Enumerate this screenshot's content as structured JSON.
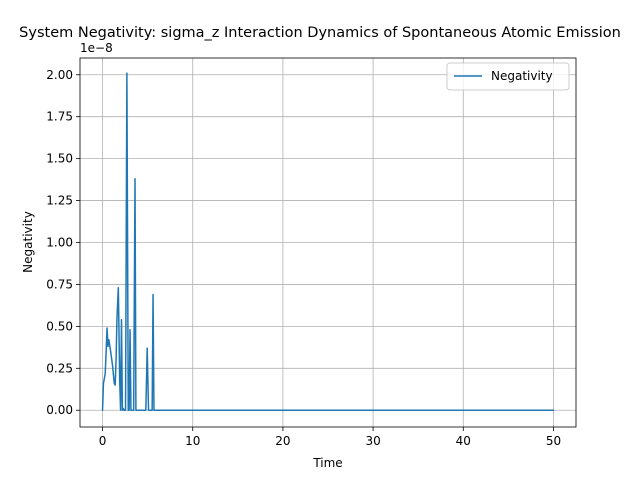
{
  "chart_data": {
    "type": "line",
    "title": "System Negativity: sigma_z Interaction Dynamics of Spontaneous Atomic Emission",
    "xlabel": "Time",
    "ylabel": "Negativity",
    "y_offset_text": "1e−8",
    "y_scale_factor": 1e-08,
    "xlim": [
      -2.5,
      52.5
    ],
    "ylim": [
      -0.1,
      2.1
    ],
    "x_ticks": [
      0,
      10,
      20,
      30,
      40,
      50
    ],
    "x_tick_labels": [
      "0",
      "10",
      "20",
      "30",
      "40",
      "50"
    ],
    "y_ticks": [
      0.0,
      0.25,
      0.5,
      0.75,
      1.0,
      1.25,
      1.5,
      1.75,
      2.0
    ],
    "y_tick_labels": [
      "0.00",
      "0.25",
      "0.50",
      "0.75",
      "1.00",
      "1.25",
      "1.50",
      "1.75",
      "2.00"
    ],
    "grid": true,
    "legend_position": "top-right",
    "series": [
      {
        "name": "Negativity",
        "color": "#1f77b4",
        "x": [
          0,
          0.1,
          0.3,
          0.5,
          0.6,
          0.7,
          0.9,
          1.1,
          1.3,
          1.4,
          1.5,
          1.6,
          1.75,
          1.9,
          2.0,
          2.1,
          2.2,
          2.3,
          2.4,
          2.55,
          2.7,
          2.85,
          2.95,
          3.05,
          3.15,
          3.3,
          3.45,
          3.6,
          3.7,
          3.8,
          4.0,
          4.5,
          4.8,
          4.95,
          5.1,
          5.3,
          5.5,
          5.6,
          5.7,
          6.0,
          8,
          10,
          20,
          30,
          40,
          50
        ],
        "y": [
          0.0,
          0.16,
          0.22,
          0.49,
          0.38,
          0.42,
          0.35,
          0.27,
          0.16,
          0.15,
          0.3,
          0.55,
          0.73,
          0.18,
          0.0,
          0.54,
          0.0,
          0.01,
          0.0,
          0.0,
          2.01,
          0.0,
          0.0,
          0.48,
          0.0,
          0.0,
          0.0,
          1.38,
          0.0,
          0.0,
          0.0,
          0.0,
          0.0,
          0.37,
          0.0,
          0.0,
          0.0,
          0.69,
          0.0,
          0.0,
          0.0,
          0.0,
          0.0,
          0.0,
          0.0,
          0.0
        ]
      }
    ]
  }
}
